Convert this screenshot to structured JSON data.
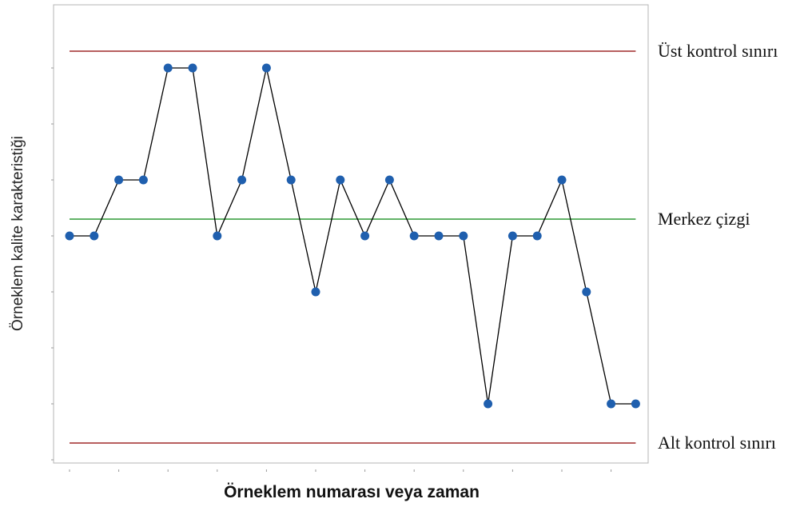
{
  "chart_data": {
    "type": "line",
    "title": "",
    "xlabel": "Örneklem numarası veya zaman",
    "ylabel": "Örneklem kalite karakteristiği",
    "grid": false,
    "x": [
      1,
      2,
      3,
      4,
      5,
      6,
      7,
      8,
      9,
      10,
      11,
      12,
      13,
      14,
      15,
      16,
      17,
      18,
      19,
      20,
      21,
      22,
      23,
      24
    ],
    "series": [
      {
        "values": [
          3,
          3,
          4,
          4,
          6,
          6,
          3,
          4,
          6,
          4,
          2,
          4,
          3,
          4,
          3,
          3,
          3,
          0,
          3,
          3,
          4,
          2,
          0,
          0
        ],
        "color": "#1f5fae"
      }
    ],
    "ylim": [
      -1,
      7
    ],
    "control_lines": [
      {
        "label": "Üst kontrol sınırı",
        "value": 6.3,
        "color": "#a02a2a"
      },
      {
        "label": "Merkez çizgi",
        "value": 3.3,
        "color": "#2e9a36"
      },
      {
        "label": "Alt kontrol sınırı",
        "value": -0.7,
        "color": "#a02a2a"
      }
    ]
  }
}
